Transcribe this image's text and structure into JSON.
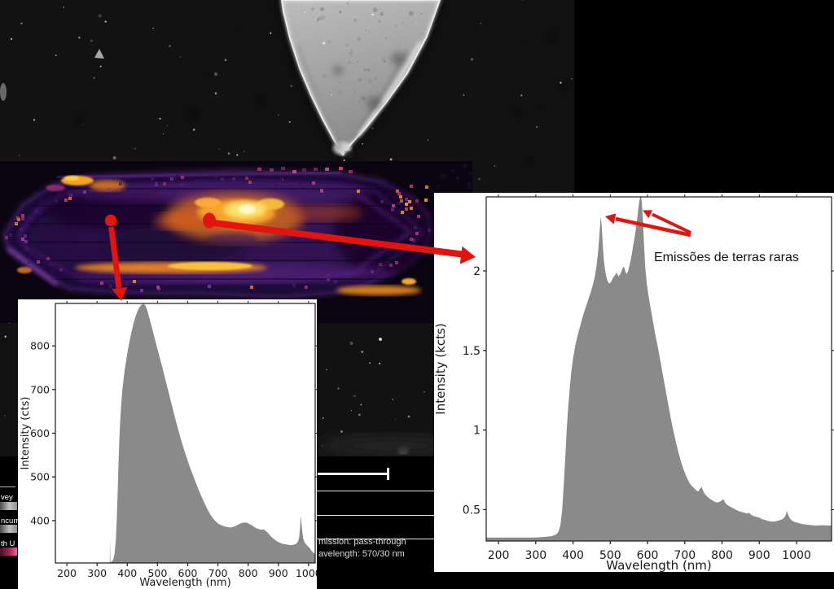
{
  "colors": {
    "accent_red": "#e31410",
    "spectrum_fill": "#8a8a8a",
    "axis": "#1a1a1a",
    "chart_bg": "#ffffff",
    "background": "#000000"
  },
  "annotations": {
    "rare_earth_label": "Emissões de terras raras"
  },
  "info_panel": {
    "rows": [
      "mission: pass-through",
      "avelength: 570/30 nm"
    ]
  },
  "sidebar_scraps": [
    {
      "label": "vey",
      "bar": "gray"
    },
    {
      "label": "ncurr",
      "bar": "gray"
    },
    {
      "label": "th U",
      "bar": "pink"
    }
  ],
  "chart_data": [
    {
      "type": "area",
      "xlabel": "Wavelength (nm)",
      "ylabel": "Intensity (cts)",
      "xlim": [
        162,
        1022
      ],
      "ylim": [
        303,
        897
      ],
      "xticks": [
        200,
        300,
        400,
        500,
        600,
        700,
        800,
        900,
        1000
      ],
      "yticks": [
        400,
        500,
        600,
        700,
        800
      ],
      "points": [
        [
          162,
          304
        ],
        [
          330,
          304
        ],
        [
          342,
          304
        ],
        [
          343,
          360
        ],
        [
          344,
          304
        ],
        [
          345,
          305
        ],
        [
          350,
          307
        ],
        [
          354,
          312
        ],
        [
          358,
          325
        ],
        [
          362,
          355
        ],
        [
          365,
          400
        ],
        [
          368,
          460
        ],
        [
          371,
          530
        ],
        [
          374,
          590
        ],
        [
          377,
          635
        ],
        [
          380,
          668
        ],
        [
          384,
          700
        ],
        [
          388,
          725
        ],
        [
          392,
          748
        ],
        [
          397,
          770
        ],
        [
          402,
          790
        ],
        [
          408,
          812
        ],
        [
          414,
          832
        ],
        [
          420,
          850
        ],
        [
          427,
          866
        ],
        [
          433,
          878
        ],
        [
          440,
          888
        ],
        [
          446,
          893
        ],
        [
          452,
          896
        ],
        [
          458,
          894
        ],
        [
          464,
          886
        ],
        [
          470,
          872
        ],
        [
          477,
          854
        ],
        [
          485,
          833
        ],
        [
          493,
          811
        ],
        [
          501,
          790
        ],
        [
          509,
          769
        ],
        [
          517,
          748
        ],
        [
          525,
          726
        ],
        [
          533,
          704
        ],
        [
          541,
          682
        ],
        [
          549,
          660
        ],
        [
          557,
          638
        ],
        [
          565,
          617
        ],
        [
          573,
          597
        ],
        [
          581,
          578
        ],
        [
          589,
          560
        ],
        [
          597,
          543
        ],
        [
          605,
          527
        ],
        [
          613,
          512
        ],
        [
          621,
          497
        ],
        [
          629,
          483
        ],
        [
          637,
          469
        ],
        [
          645,
          456
        ],
        [
          653,
          444
        ],
        [
          661,
          432
        ],
        [
          669,
          421
        ],
        [
          677,
          412
        ],
        [
          685,
          404
        ],
        [
          693,
          398
        ],
        [
          701,
          393
        ],
        [
          709,
          390
        ],
        [
          717,
          388
        ],
        [
          725,
          386
        ],
        [
          733,
          385
        ],
        [
          741,
          384
        ],
        [
          749,
          385
        ],
        [
          757,
          387
        ],
        [
          765,
          390
        ],
        [
          773,
          393
        ],
        [
          781,
          395
        ],
        [
          789,
          396
        ],
        [
          797,
          395
        ],
        [
          805,
          392
        ],
        [
          813,
          389
        ],
        [
          821,
          385
        ],
        [
          829,
          382
        ],
        [
          837,
          380
        ],
        [
          845,
          379
        ],
        [
          851,
          380
        ],
        [
          857,
          377
        ],
        [
          865,
          372
        ],
        [
          873,
          366
        ],
        [
          881,
          360
        ],
        [
          889,
          356
        ],
        [
          897,
          352
        ],
        [
          905,
          349
        ],
        [
          913,
          347
        ],
        [
          921,
          346
        ],
        [
          929,
          345
        ],
        [
          937,
          344
        ],
        [
          945,
          344
        ],
        [
          953,
          345
        ],
        [
          959,
          347
        ],
        [
          965,
          352
        ],
        [
          969,
          362
        ],
        [
          972,
          385
        ],
        [
          974,
          412
        ],
        [
          976,
          400
        ],
        [
          979,
          375
        ],
        [
          982,
          360
        ],
        [
          986,
          352
        ],
        [
          990,
          347
        ],
        [
          995,
          343
        ],
        [
          1000,
          340
        ],
        [
          1006,
          335
        ],
        [
          1011,
          330
        ],
        [
          1016,
          326
        ],
        [
          1022,
          324
        ]
      ]
    },
    {
      "type": "area",
      "xlabel": "Wavelength (nm)",
      "ylabel": "Intensity (kcts)",
      "xlim": [
        167,
        1094
      ],
      "ylim": [
        0.303,
        2.465
      ],
      "xticks": [
        200,
        300,
        400,
        500,
        600,
        700,
        800,
        900,
        1000
      ],
      "yticks": [
        0.5,
        1,
        1.5,
        2
      ],
      "points": [
        [
          167,
          0.325
        ],
        [
          300,
          0.325
        ],
        [
          330,
          0.33
        ],
        [
          345,
          0.335
        ],
        [
          355,
          0.345
        ],
        [
          361,
          0.36
        ],
        [
          366,
          0.4
        ],
        [
          371,
          0.5
        ],
        [
          375,
          0.65
        ],
        [
          379,
          0.82
        ],
        [
          383,
          1.0
        ],
        [
          387,
          1.14
        ],
        [
          391,
          1.26
        ],
        [
          395,
          1.36
        ],
        [
          400,
          1.45
        ],
        [
          406,
          1.53
        ],
        [
          413,
          1.6
        ],
        [
          420,
          1.66
        ],
        [
          427,
          1.72
        ],
        [
          434,
          1.77
        ],
        [
          441,
          1.82
        ],
        [
          448,
          1.87
        ],
        [
          454,
          1.92
        ],
        [
          459,
          1.97
        ],
        [
          463,
          2.03
        ],
        [
          467,
          2.11
        ],
        [
          470,
          2.2
        ],
        [
          473,
          2.3
        ],
        [
          475,
          2.34
        ],
        [
          477,
          2.28
        ],
        [
          480,
          2.16
        ],
        [
          483,
          2.06
        ],
        [
          487,
          1.99
        ],
        [
          492,
          1.94
        ],
        [
          497,
          1.92
        ],
        [
          502,
          1.93
        ],
        [
          507,
          1.955
        ],
        [
          512,
          1.97
        ],
        [
          517,
          1.99
        ],
        [
          522,
          1.965
        ],
        [
          527,
          1.98
        ],
        [
          532,
          2.01
        ],
        [
          536,
          2.03
        ],
        [
          540,
          2.0
        ],
        [
          544,
          1.98
        ],
        [
          548,
          2.0
        ],
        [
          552,
          2.04
        ],
        [
          556,
          2.08
        ],
        [
          560,
          2.14
        ],
        [
          566,
          2.22
        ],
        [
          572,
          2.32
        ],
        [
          577,
          2.42
        ],
        [
          580,
          2.465
        ],
        [
          583,
          2.465
        ],
        [
          585,
          2.42
        ],
        [
          588,
          2.3
        ],
        [
          591,
          2.15
        ],
        [
          594,
          2.02
        ],
        [
          598,
          1.92
        ],
        [
          603,
          1.84
        ],
        [
          608,
          1.77
        ],
        [
          614,
          1.69
        ],
        [
          620,
          1.61
        ],
        [
          627,
          1.53
        ],
        [
          634,
          1.44
        ],
        [
          641,
          1.35
        ],
        [
          648,
          1.26
        ],
        [
          655,
          1.17
        ],
        [
          662,
          1.08
        ],
        [
          669,
          1.0
        ],
        [
          676,
          0.925
        ],
        [
          683,
          0.86
        ],
        [
          690,
          0.8
        ],
        [
          697,
          0.75
        ],
        [
          704,
          0.71
        ],
        [
          711,
          0.675
        ],
        [
          718,
          0.65
        ],
        [
          725,
          0.635
        ],
        [
          731,
          0.62
        ],
        [
          736,
          0.615
        ],
        [
          741,
          0.63
        ],
        [
          745,
          0.645
        ],
        [
          748,
          0.625
        ],
        [
          753,
          0.6
        ],
        [
          759,
          0.585
        ],
        [
          766,
          0.57
        ],
        [
          773,
          0.56
        ],
        [
          780,
          0.55
        ],
        [
          787,
          0.545
        ],
        [
          794,
          0.55
        ],
        [
          800,
          0.56
        ],
        [
          804,
          0.565
        ],
        [
          808,
          0.545
        ],
        [
          814,
          0.53
        ],
        [
          821,
          0.52
        ],
        [
          829,
          0.51
        ],
        [
          837,
          0.5
        ],
        [
          845,
          0.49
        ],
        [
          853,
          0.485
        ],
        [
          861,
          0.48
        ],
        [
          868,
          0.475
        ],
        [
          873,
          0.48
        ],
        [
          877,
          0.47
        ],
        [
          884,
          0.46
        ],
        [
          892,
          0.455
        ],
        [
          900,
          0.45
        ],
        [
          908,
          0.44
        ],
        [
          916,
          0.435
        ],
        [
          924,
          0.43
        ],
        [
          932,
          0.425
        ],
        [
          940,
          0.425
        ],
        [
          948,
          0.43
        ],
        [
          956,
          0.435
        ],
        [
          962,
          0.44
        ],
        [
          967,
          0.45
        ],
        [
          971,
          0.465
        ],
        [
          974,
          0.49
        ],
        [
          977,
          0.47
        ],
        [
          981,
          0.45
        ],
        [
          986,
          0.435
        ],
        [
          992,
          0.425
        ],
        [
          999,
          0.42
        ],
        [
          1007,
          0.415
        ],
        [
          1015,
          0.41
        ],
        [
          1030,
          0.405
        ],
        [
          1050,
          0.4
        ],
        [
          1070,
          0.402
        ],
        [
          1094,
          0.4
        ]
      ]
    }
  ]
}
